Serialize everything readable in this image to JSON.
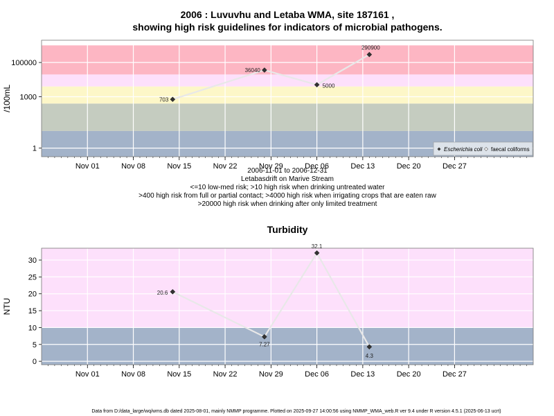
{
  "chart_data": [
    {
      "type": "line",
      "title": "2006 : Luvuvhu and Letaba WMA, site 187161 ,",
      "subtitle": "showing high risk guidelines for indicators of microbial pathogens.",
      "ylabel": "/100mL",
      "yscale": "log",
      "yticks": [
        1,
        1000,
        100000
      ],
      "ytick_labels": [
        "1",
        "1000",
        "100000"
      ],
      "xtick_labels": [
        "Nov 01",
        "Nov 08",
        "Nov 15",
        "Nov 22",
        "Nov 29",
        "Dec 06",
        "Dec 13",
        "Dec 20",
        "Dec 27"
      ],
      "bands": [
        {
          "from": 0.001,
          "to": 10,
          "color": "#a3b3c9"
        },
        {
          "from": 10,
          "to": 400,
          "color": "#c5ccc0"
        },
        {
          "from": 400,
          "to": 4000,
          "color": "#fdf7c8"
        },
        {
          "from": 4000,
          "to": 20000,
          "color": "#fde0fb"
        },
        {
          "from": 20000,
          "to": 1000000,
          "color": "#fdb6c3"
        }
      ],
      "series": [
        {
          "name": "Escherichia coli",
          "points": [
            {
              "date": "2006-11-14",
              "value": 703,
              "label": "703"
            },
            {
              "date": "2006-11-28",
              "value": 36040,
              "label": "36040"
            },
            {
              "date": "2006-12-06",
              "value": 5000,
              "label": "5000"
            },
            {
              "date": "2006-12-14",
              "value": 290900,
              "label": "290900"
            }
          ]
        }
      ],
      "legend": {
        "position": "bottom-right",
        "entries": [
          "Escherichia coli",
          "faecal coliforms"
        ]
      },
      "info_lines": [
        "2006-11-01 to 2006-12-31",
        "Letabasdrift on Marive Stream",
        "<=10 low-med risk; >10 high risk when drinking untreated water",
        ">400 high risk from full or partial contact; >4000 high risk when irrigating crops that are eaten raw",
        ">20000 high risk when drinking after only limited treatment"
      ]
    },
    {
      "type": "line",
      "title": "Turbidity",
      "ylabel": "NTU",
      "ylim": [
        -1,
        33.5
      ],
      "yticks": [
        0,
        5,
        10,
        15,
        20,
        25,
        30
      ],
      "xtick_labels": [
        "Nov 01",
        "Nov 08",
        "Nov 15",
        "Nov 22",
        "Nov 29",
        "Dec 06",
        "Dec 13",
        "Dec 20",
        "Dec 27"
      ],
      "bands": [
        {
          "from": -1,
          "to": 10,
          "color": "#a3b3c9"
        },
        {
          "from": 10,
          "to": 33.5,
          "color": "#fde0fb"
        }
      ],
      "series": [
        {
          "points": [
            {
              "date": "2006-11-14",
              "value": 20.6,
              "label": "20.6"
            },
            {
              "date": "2006-11-28",
              "value": 7.27,
              "label": "7.27"
            },
            {
              "date": "2006-12-06",
              "value": 32.1,
              "label": "32.1"
            },
            {
              "date": "2006-12-14",
              "value": 4.3,
              "label": "4.3"
            }
          ]
        }
      ]
    }
  ],
  "footer": "Data from D:/data_large/wq/wms.db dated 2025-08-01, mainly NMMP programme. Plotted on 2025-09-27 14:00:56 using NMMP_WMA_web.R ver 9.4 under R version 4.5.1 (2025-06-13 ucrt)"
}
